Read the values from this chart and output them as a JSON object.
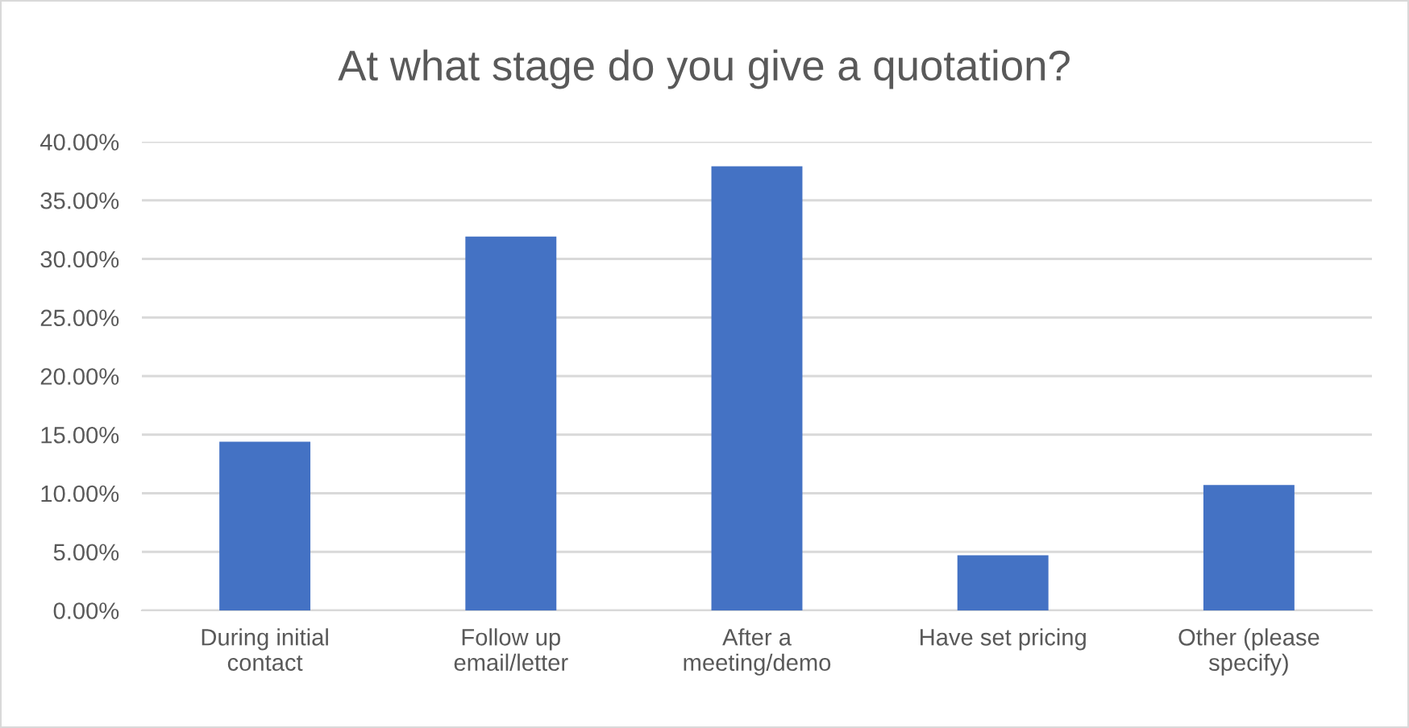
{
  "chart_data": {
    "type": "bar",
    "title": "At what stage do you give a quotation?",
    "categories": [
      "During initial\ncontact",
      "Follow up\nemail/letter",
      "After a\nmeeting/demo",
      "Have set pricing",
      "Other (please\nspecify)"
    ],
    "values": [
      14.4,
      31.9,
      37.9,
      4.7,
      10.7
    ],
    "color": "#4472c4",
    "ylim": [
      0,
      40
    ],
    "yticks": [
      {
        "value": 0,
        "label": "0.00%"
      },
      {
        "value": 5,
        "label": "5.00%"
      },
      {
        "value": 10,
        "label": "10.00%"
      },
      {
        "value": 15,
        "label": "15.00%"
      },
      {
        "value": 20,
        "label": "20.00%"
      },
      {
        "value": 25,
        "label": "25.00%"
      },
      {
        "value": 30,
        "label": "30.00%"
      },
      {
        "value": 35,
        "label": "35.00%"
      },
      {
        "value": 40,
        "label": "40.00%"
      }
    ],
    "grid": "y"
  }
}
